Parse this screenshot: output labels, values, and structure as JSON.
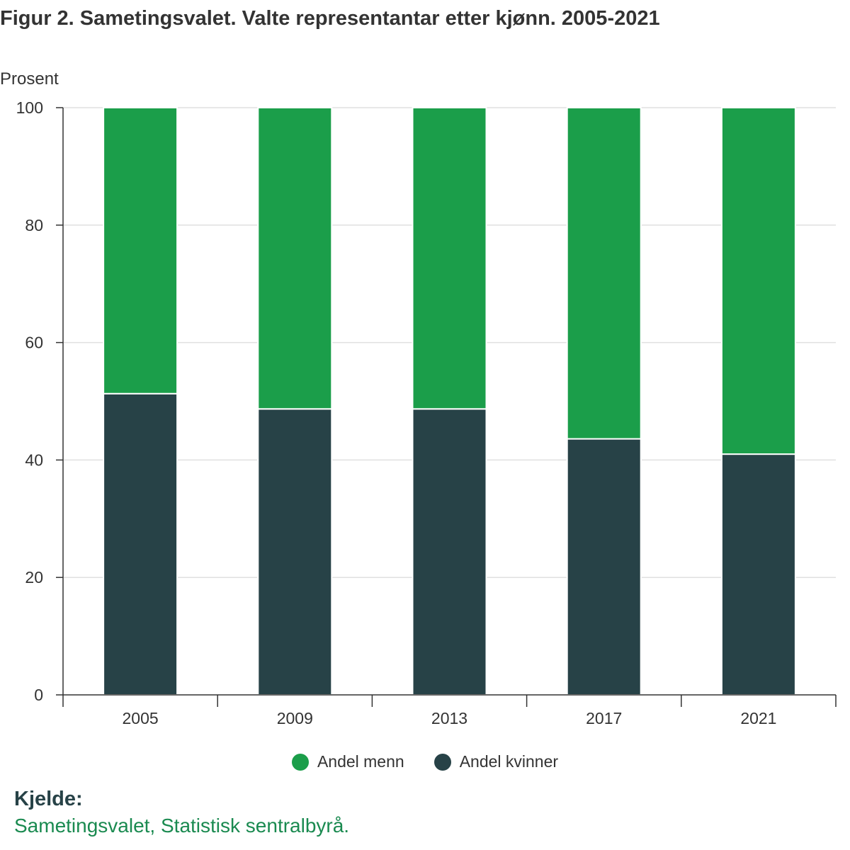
{
  "title": "Figur 2. Sametingsvalet. Valte representantar etter kjønn. 2005-2021",
  "source_heading": "Kjelde:",
  "source_text": "Sametingsvalet, Statistisk sentralbyrå.",
  "chart_data": {
    "type": "bar",
    "stacked": true,
    "title": "Figur 2. Sametingsvalet. Valte representantar etter kjønn. 2005-2021",
    "xlabel": "",
    "ylabel": "Prosent",
    "ylim": [
      0,
      100
    ],
    "yticks": [
      "0",
      "20",
      "40",
      "60",
      "80",
      "100"
    ],
    "grid": true,
    "legend_position": "bottom",
    "categories": [
      "2005",
      "2009",
      "2013",
      "2017",
      "2021"
    ],
    "series": [
      {
        "name": "Andel kvinner",
        "color": "#274247",
        "values": [
          51.3,
          48.7,
          48.7,
          43.6,
          41.0
        ]
      },
      {
        "name": "Andel menn",
        "color": "#1b9e4a",
        "values": [
          48.7,
          51.3,
          51.3,
          56.4,
          59.0
        ]
      }
    ]
  }
}
